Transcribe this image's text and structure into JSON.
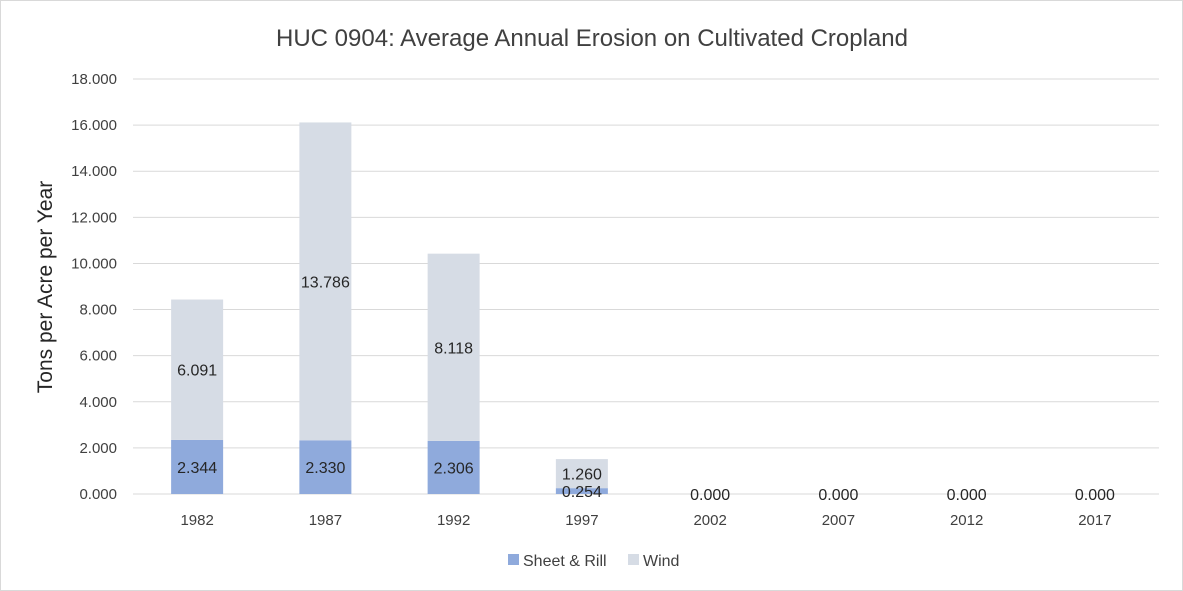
{
  "chart_data": {
    "type": "bar",
    "stacked": true,
    "title": "HUC 0904: Average Annual Erosion on Cultivated Cropland",
    "xlabel": "",
    "ylabel": "Tons per Acre per Year",
    "ylim": [
      0,
      18
    ],
    "yticks": [
      "0.000",
      "2.000",
      "4.000",
      "6.000",
      "8.000",
      "10.000",
      "12.000",
      "14.000",
      "16.000",
      "18.000"
    ],
    "categories": [
      "1982",
      "1987",
      "1992",
      "1997",
      "2002",
      "2007",
      "2012",
      "2017"
    ],
    "series": [
      {
        "name": "Sheet & Rill",
        "color": "#8faadc",
        "values": [
          2.344,
          2.33,
          2.306,
          0.254,
          0,
          0,
          0,
          0
        ],
        "labels": [
          "2.344",
          "2.330",
          "2.306",
          "0.254",
          "0.000",
          "0.000",
          "0.000",
          "0.000"
        ]
      },
      {
        "name": "Wind",
        "color": "#d6dce5",
        "values": [
          6.091,
          13.786,
          8.118,
          1.26,
          0,
          0,
          0,
          0
        ],
        "labels": [
          "6.091",
          "13.786",
          "8.118",
          "1.260",
          "",
          "",
          "",
          ""
        ]
      }
    ],
    "grid": true,
    "legend": "bottom"
  }
}
